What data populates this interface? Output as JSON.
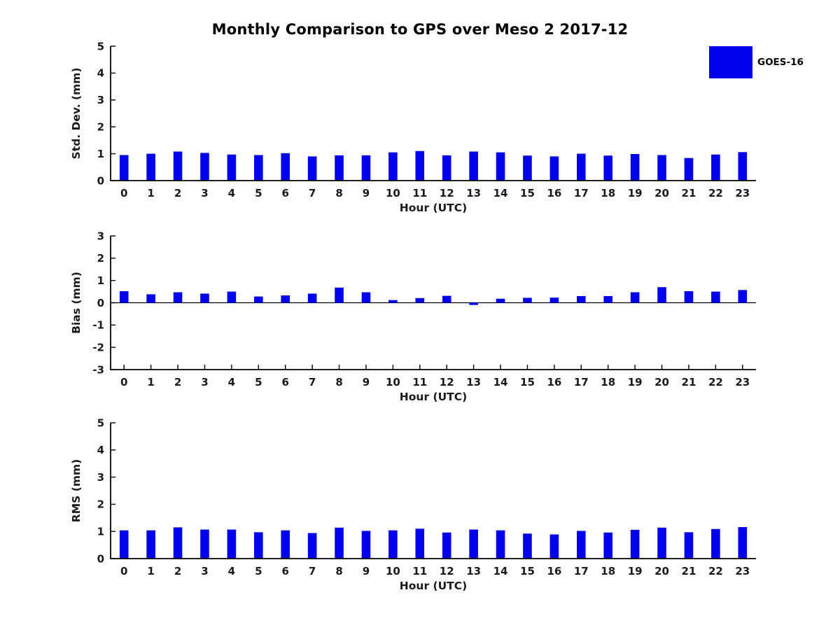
{
  "figure": {
    "title": "Monthly Comparison to GPS over Meso 2 2017-12",
    "legend": {
      "label": "GOES-16",
      "color": "#0000ee",
      "position": "upper-right"
    }
  },
  "chart_data": [
    {
      "type": "bar",
      "title": "",
      "ylabel": "Std. Dev. (mm)",
      "xlabel": "Hour (UTC)",
      "ylim": [
        0,
        5
      ],
      "yticks": [
        0,
        1,
        2,
        3,
        4,
        5
      ],
      "grid": false,
      "categories": [
        "0",
        "1",
        "2",
        "3",
        "4",
        "5",
        "6",
        "7",
        "8",
        "9",
        "10",
        "11",
        "12",
        "13",
        "14",
        "15",
        "16",
        "17",
        "18",
        "19",
        "20",
        "21",
        "22",
        "23"
      ],
      "series": [
        {
          "name": "GOES-16",
          "color": "#0000ee",
          "values": [
            0.95,
            1.0,
            1.08,
            1.03,
            0.97,
            0.95,
            1.02,
            0.9,
            0.94,
            0.94,
            1.05,
            1.1,
            0.94,
            1.08,
            1.05,
            0.93,
            0.9,
            1.0,
            0.93,
            0.99,
            0.95,
            0.84,
            0.97,
            1.06
          ]
        }
      ]
    },
    {
      "type": "bar",
      "title": "",
      "ylabel": "Bias (mm)",
      "xlabel": "Hour (UTC)",
      "ylim": [
        -3,
        3
      ],
      "yticks": [
        -3,
        -2,
        -1,
        0,
        1,
        2,
        3
      ],
      "grid": false,
      "categories": [
        "0",
        "1",
        "2",
        "3",
        "4",
        "5",
        "6",
        "7",
        "8",
        "9",
        "10",
        "11",
        "12",
        "13",
        "14",
        "15",
        "16",
        "17",
        "18",
        "19",
        "20",
        "21",
        "22",
        "23"
      ],
      "series": [
        {
          "name": "GOES-16",
          "color": "#0000ee",
          "values": [
            0.52,
            0.38,
            0.47,
            0.41,
            0.5,
            0.28,
            0.33,
            0.41,
            0.68,
            0.47,
            0.12,
            0.21,
            0.31,
            -0.1,
            0.18,
            0.22,
            0.23,
            0.3,
            0.3,
            0.47,
            0.7,
            0.52,
            0.5,
            0.57
          ]
        }
      ]
    },
    {
      "type": "bar",
      "title": "",
      "ylabel": "RMS (mm)",
      "xlabel": "Hour (UTC)",
      "ylim": [
        0,
        5
      ],
      "yticks": [
        0,
        1,
        2,
        3,
        4,
        5
      ],
      "grid": false,
      "categories": [
        "0",
        "1",
        "2",
        "3",
        "4",
        "5",
        "6",
        "7",
        "8",
        "9",
        "10",
        "11",
        "12",
        "13",
        "14",
        "15",
        "16",
        "17",
        "18",
        "19",
        "20",
        "21",
        "22",
        "23"
      ],
      "series": [
        {
          "name": "GOES-16",
          "color": "#0000ee",
          "values": [
            1.04,
            1.04,
            1.15,
            1.07,
            1.07,
            0.97,
            1.04,
            0.94,
            1.14,
            1.02,
            1.04,
            1.1,
            0.96,
            1.07,
            1.04,
            0.92,
            0.89,
            1.02,
            0.96,
            1.06,
            1.14,
            0.97,
            1.09,
            1.16
          ]
        }
      ]
    }
  ]
}
